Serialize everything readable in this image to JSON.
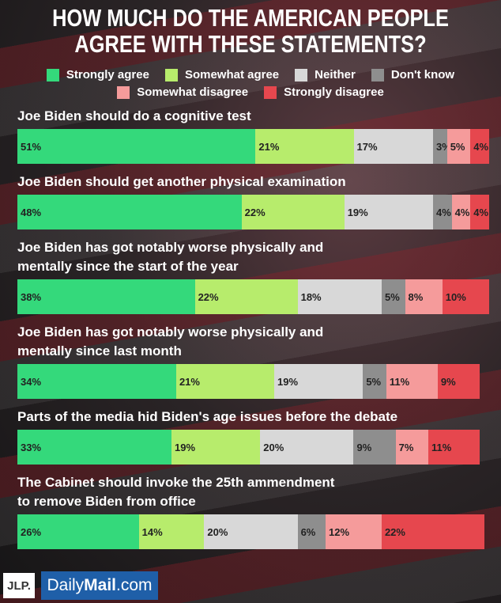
{
  "chart_data": {
    "type": "stacked-bar",
    "title": [
      "HOW MUCH DO THE AMERICAN PEOPLE",
      "AGREE WITH THESE STATEMENTS?"
    ],
    "categories": [
      [
        "Joe Biden should do a cognitive test"
      ],
      [
        "Joe Biden should get another physical examination"
      ],
      [
        "Joe Biden has got notably worse physically and",
        "mentally since the start of the year"
      ],
      [
        "Joe Biden has got notably worse physically and",
        "mentally since last month"
      ],
      [
        "Parts of the media hid Biden's age issues before the debate"
      ],
      [
        "The Cabinet should invoke the 25th ammendment",
        "to remove Biden from office"
      ]
    ],
    "xlim": [
      0,
      100
    ],
    "series": [
      {
        "name": "Strongly agree",
        "color": "#34d97b",
        "values": [
          51,
          48,
          38,
          34,
          33,
          26
        ],
        "value_labels": [
          "51%",
          "48%",
          "38%",
          "34%",
          "33%",
          "26%"
        ]
      },
      {
        "name": "Somewhat agree",
        "color": "#b7ec6c",
        "values": [
          21,
          22,
          22,
          21,
          19,
          14
        ],
        "value_labels": [
          "21%",
          "22%",
          "22%",
          "21%",
          "19%",
          "14%"
        ]
      },
      {
        "name": "Neither",
        "color": "#d8d8d8",
        "values": [
          17,
          19,
          18,
          19,
          20,
          20
        ],
        "value_labels": [
          "17%",
          "19%",
          "18%",
          "19%",
          "20%",
          "20%"
        ]
      },
      {
        "name": "Don't know",
        "color": "#8e8e8e",
        "values": [
          3,
          4,
          5,
          5,
          9,
          6
        ],
        "value_labels": [
          "3%",
          "4%",
          "5%",
          "5%",
          "9%",
          "6%"
        ]
      },
      {
        "name": "Somewhat disagree",
        "color": "#f59b9b",
        "values": [
          5,
          4,
          8,
          11,
          7,
          12
        ],
        "value_labels": [
          "5%",
          "4%",
          "8%",
          "11%",
          "7%",
          "12%"
        ]
      },
      {
        "name": "Strongly disagree",
        "color": "#e6474e",
        "values": [
          4,
          4,
          10,
          9,
          11,
          22
        ],
        "value_labels": [
          "4%",
          "4%",
          "10%",
          "9%",
          "11%",
          "22%"
        ]
      }
    ]
  },
  "footer": {
    "left": "JLP.",
    "right": [
      "Daily",
      "Mail",
      ".com"
    ]
  }
}
